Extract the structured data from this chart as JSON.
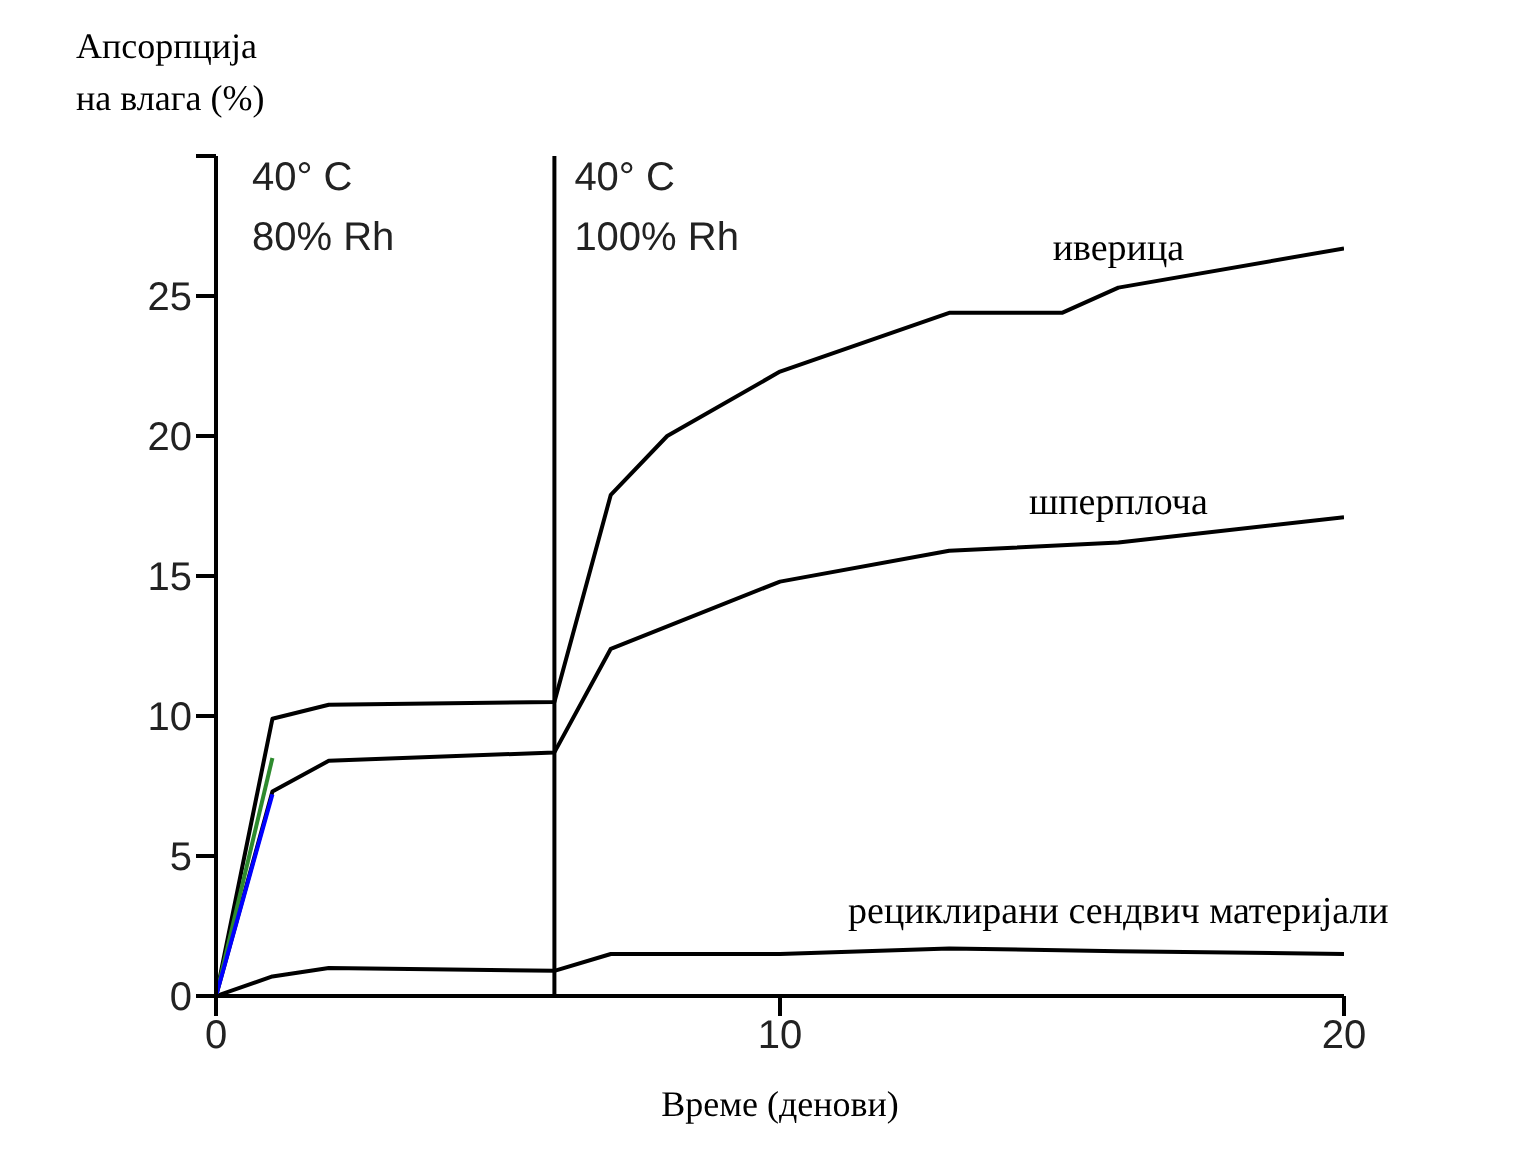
{
  "chart_data": {
    "type": "line",
    "ylabel": "Апсорпција\nна влага (%)",
    "xlabel": "Време (денови)",
    "xlim": [
      0,
      20
    ],
    "xticks": [
      0,
      10,
      20
    ],
    "ylim": [
      0,
      30
    ],
    "yticks": [
      0,
      5,
      10,
      15,
      20,
      25,
      {
        "value": 30,
        "label": null
      }
    ],
    "grid": false,
    "marker": "none",
    "line_style": "solid",
    "annotations": [
      "40° C\n80% Rh",
      "40° C\n100% Rh"
    ],
    "ref_lines": [
      {
        "axis": "x",
        "value": 6,
        "color": "#000000"
      }
    ],
    "series": [
      {
        "name": "иверица",
        "color": "#000000",
        "x": [
          0,
          1,
          2,
          6,
          7,
          8,
          10,
          13,
          15,
          16,
          20
        ],
        "values": [
          0,
          9.9,
          10.4,
          10.5,
          17.9,
          20,
          22.3,
          24.4,
          24.4,
          25.3,
          26.7
        ]
      },
      {
        "name": "шперплоча",
        "color": "#000000",
        "x": [
          0,
          1,
          2,
          6,
          7,
          10,
          13,
          16,
          20
        ],
        "values": [
          0,
          7.3,
          8.4,
          8.7,
          12.4,
          14.8,
          15.9,
          16.2,
          17.1
        ]
      },
      {
        "name": "рециклирани сендвич материјали",
        "color": "#000000",
        "x": [
          0,
          1,
          2,
          6,
          7,
          10,
          13,
          16,
          20
        ],
        "values": [
          0,
          0.7,
          1,
          0.9,
          1.5,
          1.5,
          1.7,
          1.6,
          1.5
        ]
      },
      {
        "color": "#2e8b2e",
        "x": [
          0,
          1
        ],
        "values": [
          0,
          8.5
        ]
      },
      {
        "color": "#0000ff",
        "x": [
          0,
          1
        ],
        "values": [
          0,
          7.2
        ]
      }
    ]
  }
}
